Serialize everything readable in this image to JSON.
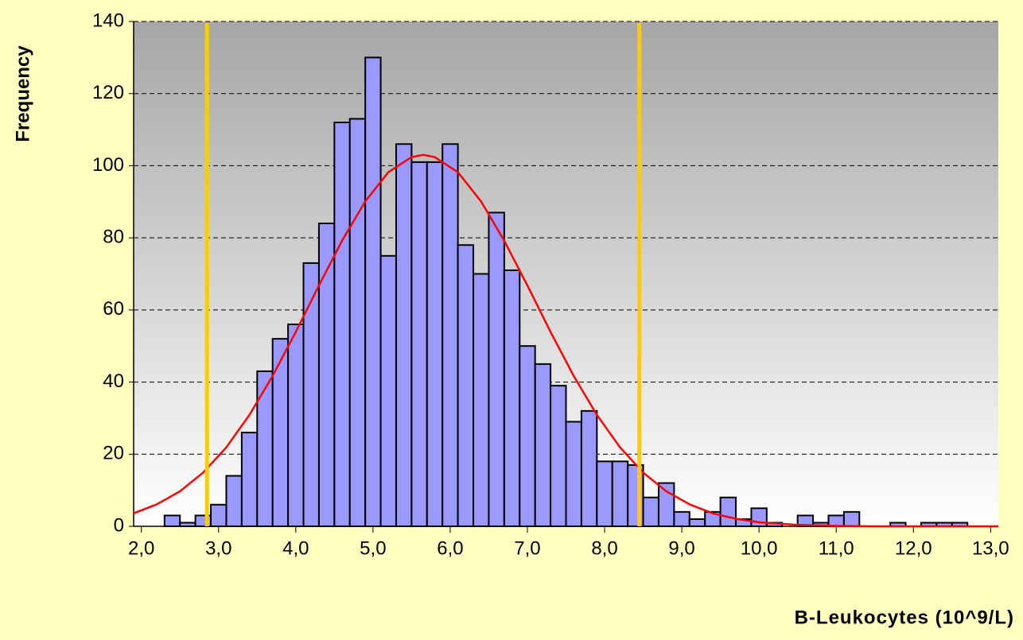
{
  "chart_data": {
    "type": "histogram",
    "xlabel": "B-Leukocytes (10^9/L)",
    "ylabel": "Frequency",
    "bins": [
      2.3,
      2.5,
      2.7,
      2.9,
      3.1,
      3.3,
      3.5,
      3.7,
      3.9,
      4.1,
      4.3,
      4.5,
      4.7,
      4.9,
      5.1,
      5.3,
      5.5,
      5.7,
      5.9,
      6.1,
      6.3,
      6.5,
      6.7,
      6.9,
      7.1,
      7.3,
      7.5,
      7.7,
      7.9,
      8.1,
      8.3,
      8.5,
      8.7,
      8.9,
      9.1,
      9.3,
      9.5,
      9.7,
      9.9,
      10.1,
      10.3,
      10.5,
      10.7,
      10.9,
      11.1,
      11.3,
      11.5,
      11.7,
      11.9,
      12.1,
      12.3,
      12.5,
      12.7
    ],
    "values": [
      3,
      1,
      3,
      6,
      14,
      26,
      43,
      52,
      56,
      73,
      84,
      112,
      113,
      130,
      75,
      106,
      101,
      101,
      106,
      78,
      70,
      87,
      71,
      50,
      45,
      39,
      29,
      32,
      18,
      18,
      17,
      8,
      12,
      4,
      2,
      4,
      8,
      2,
      5,
      1,
      0,
      3,
      1,
      3,
      4,
      0,
      0,
      1,
      0,
      1,
      1,
      1
    ],
    "color": "#9999ff",
    "curve": {
      "color": "#ff0000",
      "x": [
        1.9,
        2.2,
        2.5,
        2.8,
        3.1,
        3.4,
        3.7,
        4.0,
        4.3,
        4.6,
        4.9,
        5.2,
        5.5,
        5.65,
        5.8,
        6.1,
        6.4,
        6.7,
        7.0,
        7.3,
        7.6,
        7.9,
        8.2,
        8.5,
        8.8,
        9.1,
        9.4,
        9.7,
        10.0,
        10.5,
        11.0,
        11.5,
        12.0,
        13.1
      ],
      "values": [
        3.6,
        6.1,
        9.7,
        14.9,
        21.9,
        30.9,
        41.7,
        53.9,
        66.8,
        79.2,
        90.1,
        98.2,
        102.4,
        103,
        102.4,
        98.2,
        90.1,
        79.2,
        66.8,
        53.9,
        41.7,
        30.9,
        21.9,
        14.9,
        9.7,
        6.1,
        3.6,
        2.1,
        1.1,
        0.4,
        0.1,
        0,
        0,
        0
      ]
    },
    "reference_lines": {
      "color": "#ffcc00",
      "x": [
        2.85,
        8.45
      ]
    },
    "xlim": [
      1.9,
      13.1
    ],
    "xticks": [
      {
        "value": 2,
        "label": "2,0"
      },
      {
        "value": 3,
        "label": "3,0"
      },
      {
        "value": 4,
        "label": "4,0"
      },
      {
        "value": 5,
        "label": "5,0"
      },
      {
        "value": 6,
        "label": "6,0"
      },
      {
        "value": 7,
        "label": "7,0"
      },
      {
        "value": 8,
        "label": "8,0"
      },
      {
        "value": 9,
        "label": "9,0"
      },
      {
        "value": 10,
        "label": "10,0"
      },
      {
        "value": 11,
        "label": "11,0"
      },
      {
        "value": 12,
        "label": "12,0"
      },
      {
        "value": 13,
        "label": "13,0"
      }
    ],
    "ylim": [
      0,
      140
    ],
    "yticks": [
      0,
      20,
      40,
      60,
      80,
      100,
      120,
      140
    ],
    "grid": true
  }
}
